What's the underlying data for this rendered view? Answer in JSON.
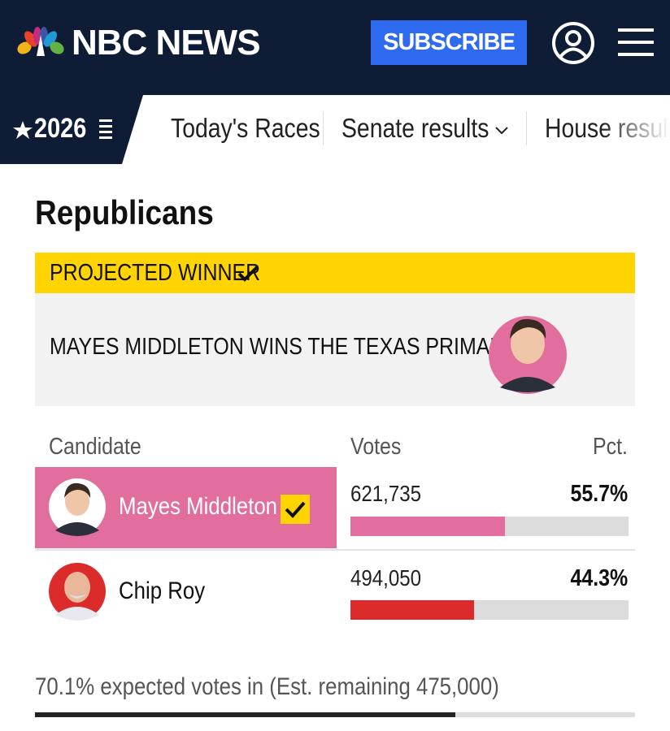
{
  "header": {
    "logo": "NBC NEWS",
    "subscribe": "SUBSCRIBE"
  },
  "nav": {
    "badge": "2026",
    "items": [
      "Today's Races",
      "Senate results",
      "House results"
    ]
  },
  "section": {
    "title": "Republicans",
    "projected_label": "PROJECTED WINNER",
    "headline": "MAYES MIDDLETON WINS THE TEXAS PRIMARY"
  },
  "table": {
    "columns": [
      "Candidate",
      "Votes",
      "Pct."
    ],
    "rows": [
      {
        "name": "Mayes Middleton",
        "votes": {
          "value": 621735,
          "label": "621,735"
        },
        "pct": {
          "value": 55.7,
          "label": "55.7%"
        },
        "color": "#e16e9c"
      },
      {
        "name": "Chip Roy",
        "votes": {
          "value": 494050,
          "label": "494,050"
        },
        "pct": {
          "value": 44.3,
          "label": "44.3%"
        },
        "color": "#dc2b2b"
      }
    ]
  },
  "footer": {
    "expected_pct": {
      "value": 70.1,
      "label": "70.1%"
    },
    "text": "expected votes in (Est. remaining 475,000)"
  }
}
